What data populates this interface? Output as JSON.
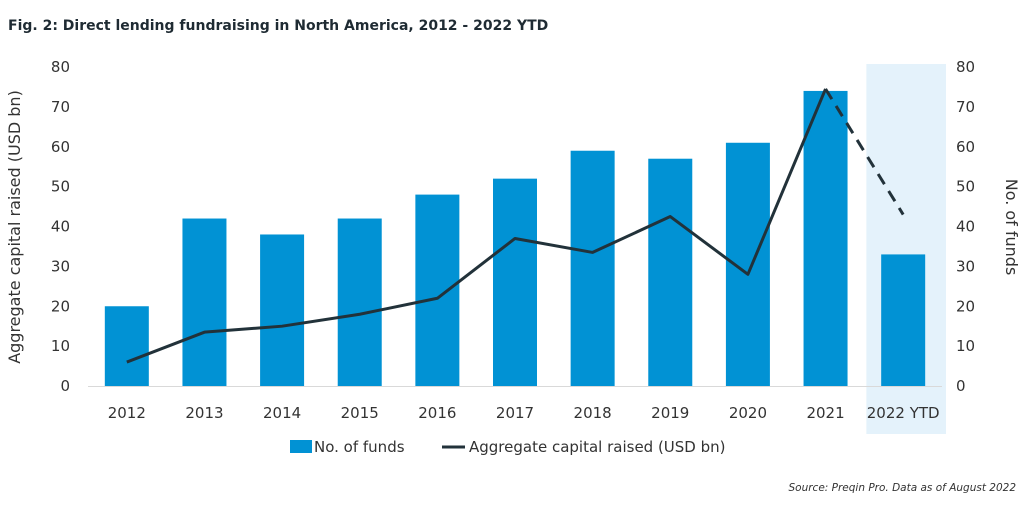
{
  "title": "Fig. 2: Direct lending fundraising in North America, 2012 - 2022 YTD",
  "source": "Source: Preqin Pro. Data as of August 2022",
  "colors": {
    "bar": "#0192d4",
    "line": "#22323a",
    "highlight": "#e4f2fb"
  },
  "chart_data": {
    "type": "bar",
    "categories": [
      "2012",
      "2013",
      "2014",
      "2015",
      "2016",
      "2017",
      "2018",
      "2019",
      "2020",
      "2021",
      "2022 YTD"
    ],
    "highlighted_category": "2022 YTD",
    "series": [
      {
        "name": "No. of funds",
        "type": "bar",
        "axis": "right",
        "values": [
          20,
          42,
          38,
          42,
          48,
          52,
          59,
          57,
          61,
          74,
          33
        ]
      },
      {
        "name": "Aggregate capital raised (USD bn)",
        "type": "line",
        "axis": "left",
        "values": [
          6,
          13.5,
          15,
          18,
          22,
          37,
          33.5,
          42.5,
          28,
          74.5,
          43
        ],
        "dashed_from_index": 9
      }
    ],
    "y_left": {
      "label": "Aggregate capital raised (USD bn)",
      "min": 0,
      "max": 80,
      "ticks": [
        0,
        10,
        20,
        30,
        40,
        50,
        60,
        70,
        80
      ]
    },
    "y_right": {
      "label": "No. of funds",
      "min": 0,
      "max": 80,
      "ticks": [
        0,
        10,
        20,
        30,
        40,
        50,
        60,
        70,
        80
      ]
    },
    "legend": {
      "position": "bottom",
      "entries": [
        "No. of funds",
        "Aggregate capital raised (USD bn)"
      ]
    },
    "grid": false
  }
}
